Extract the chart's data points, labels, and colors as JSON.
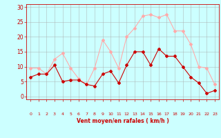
{
  "x": [
    0,
    1,
    2,
    3,
    4,
    5,
    6,
    7,
    8,
    9,
    10,
    11,
    12,
    13,
    14,
    15,
    16,
    17,
    18,
    19,
    20,
    21,
    22,
    23
  ],
  "wind_avg": [
    6.5,
    7.5,
    7.5,
    10.5,
    5.0,
    5.5,
    5.5,
    4.0,
    3.5,
    7.5,
    8.5,
    4.5,
    10.5,
    15.0,
    15.0,
    10.5,
    16.0,
    13.5,
    13.5,
    10.0,
    6.5,
    4.5,
    1.0,
    2.0
  ],
  "wind_gust": [
    9.5,
    9.5,
    7.5,
    12.5,
    14.5,
    9.5,
    6.0,
    4.0,
    9.5,
    19.0,
    15.0,
    9.5,
    20.0,
    23.0,
    27.0,
    27.5,
    26.5,
    27.5,
    22.0,
    22.0,
    17.5,
    10.0,
    9.5,
    4.0
  ],
  "color_avg": "#cc0000",
  "color_gust": "#ffaaaa",
  "bg_color": "#ccffff",
  "grid_color": "#aaaaaa",
  "xlabel": "Vent moyen/en rafales ( km/h )",
  "xlabel_color": "#cc0000",
  "ylabel_ticks": [
    0,
    5,
    10,
    15,
    20,
    25,
    30
  ],
  "xlim": [
    -0.5,
    23.5
  ],
  "ylim": [
    -1,
    31
  ],
  "marker": "D",
  "markersize": 2.0,
  "linewidth": 0.8,
  "wind_dirs": [
    "↑",
    "↙",
    "↙",
    "↙",
    "↘",
    "↘",
    "↑",
    "↙",
    "↙",
    "↗",
    "↑",
    "↗",
    "↑",
    "↗",
    "↗",
    "↑",
    "↑",
    "↗",
    "↗",
    "↗",
    "↑",
    "↑",
    "/",
    "↗"
  ]
}
